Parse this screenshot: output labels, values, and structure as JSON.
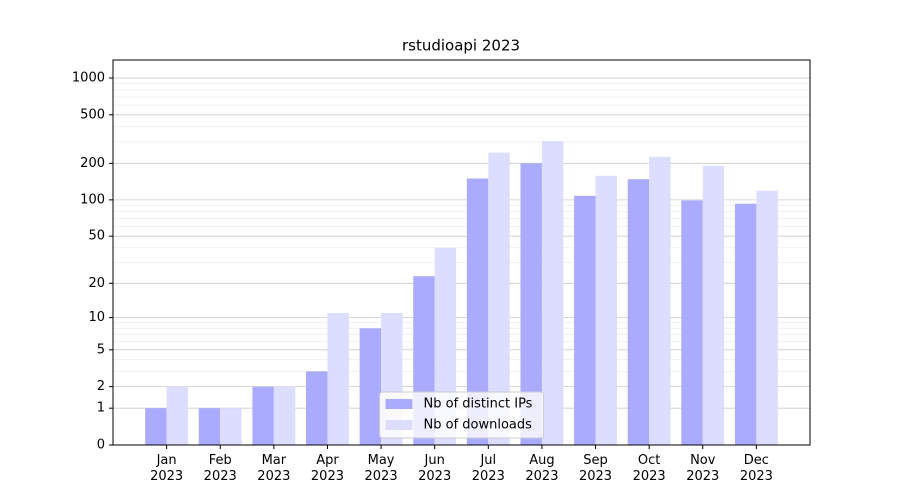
{
  "chart_data": {
    "type": "bar",
    "title": "rstudioapi 2023",
    "categories": [
      "Jan 2023",
      "Feb 2023",
      "Mar 2023",
      "Apr 2023",
      "May 2023",
      "Jun 2023",
      "Jul 2023",
      "Aug 2023",
      "Sep 2023",
      "Oct 2023",
      "Nov 2023",
      "Dec 2023"
    ],
    "series": [
      {
        "name": "Nb of distinct IPs",
        "color": "#aaaaff",
        "values": [
          1,
          1,
          2,
          3,
          8,
          23,
          150,
          200,
          108,
          148,
          99,
          93
        ]
      },
      {
        "name": "Nb of downloads",
        "color": "#ddddff",
        "values": [
          2,
          1,
          2,
          11,
          11,
          40,
          245,
          305,
          158,
          226,
          191,
          119
        ]
      }
    ],
    "yscale": "log1p",
    "ylim": [
      0,
      1405
    ],
    "yticks": [
      0,
      1,
      2,
      5,
      10,
      20,
      50,
      100,
      200,
      500,
      1000
    ],
    "minor_yticks": [
      3,
      4,
      6,
      7,
      8,
      9,
      30,
      40,
      60,
      70,
      80,
      90,
      300,
      400,
      600,
      700,
      800,
      900
    ],
    "grid": true,
    "legend": "lower center"
  }
}
